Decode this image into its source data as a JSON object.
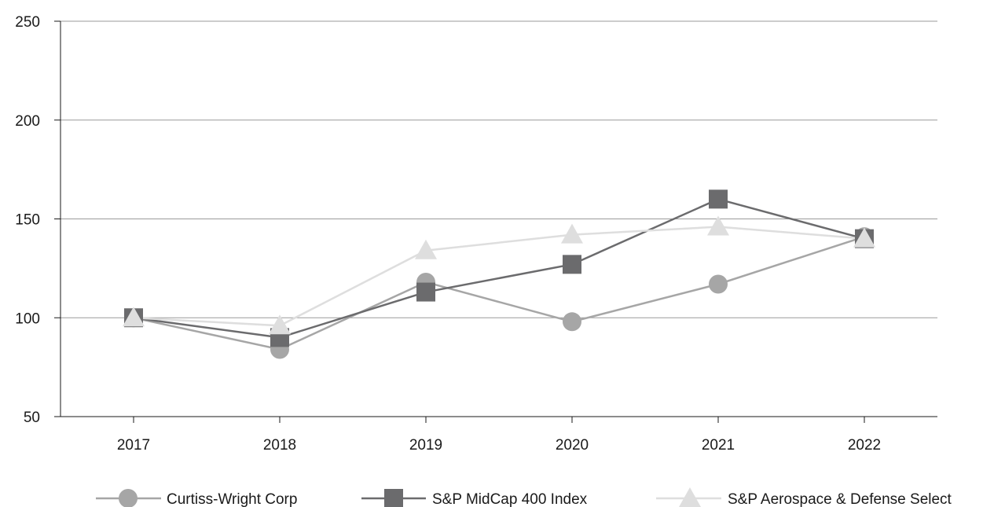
{
  "chart_data": {
    "type": "line",
    "title": "",
    "xlabel": "",
    "ylabel": "",
    "categories": [
      "2017",
      "2018",
      "2019",
      "2020",
      "2021",
      "2022"
    ],
    "ylim": [
      50,
      250
    ],
    "yticks": [
      "50",
      "100",
      "150",
      "200",
      "250"
    ],
    "grid": "horizontal",
    "legend_position": "bottom",
    "series": [
      {
        "name": "Curtiss-Wright Corp",
        "values": [
          100,
          84,
          118,
          98,
          117,
          141
        ],
        "color": "#a6a6a6",
        "marker": "circle"
      },
      {
        "name": "S&P MidCap 400 Index",
        "values": [
          100,
          90,
          113,
          127,
          160,
          140
        ],
        "color": "#6b6b6d",
        "marker": "square"
      },
      {
        "name": "S&P Aerospace & Defense Select",
        "values": [
          100,
          96,
          134,
          142,
          146,
          140
        ],
        "color": "#dedede",
        "marker": "triangle"
      }
    ]
  }
}
